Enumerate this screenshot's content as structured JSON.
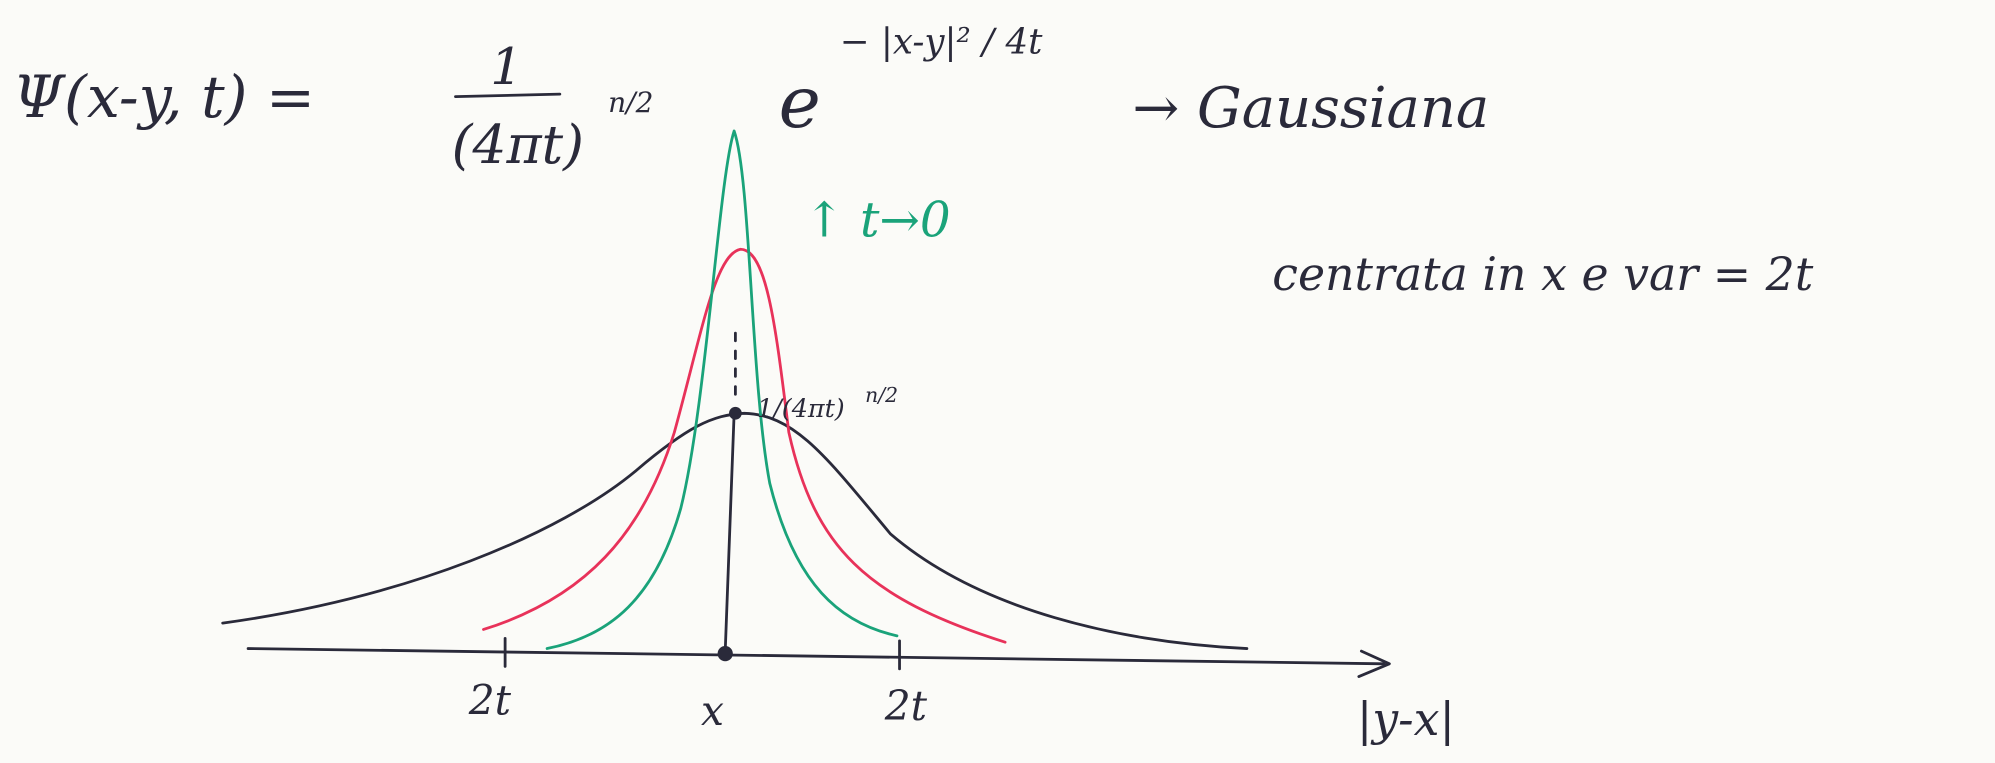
{
  "formula": {
    "lhs": "Ψ(x-y, t) =",
    "numerator": "1",
    "denominator": "(4πt)",
    "denominator_exponent": "n/2",
    "exp_base": "e",
    "exponent": "− |x-y|² / 4t"
  },
  "annotations": {
    "gaussian": "→ Gaussiana",
    "centered": "centrata in x e var = 2t",
    "limit": "↑ t→0",
    "peak_label": "1/(4πt)",
    "peak_exponent": "n/2"
  },
  "axis": {
    "tick_labels": [
      "2t",
      "x",
      "2t"
    ],
    "title": "|y-x|"
  }
}
